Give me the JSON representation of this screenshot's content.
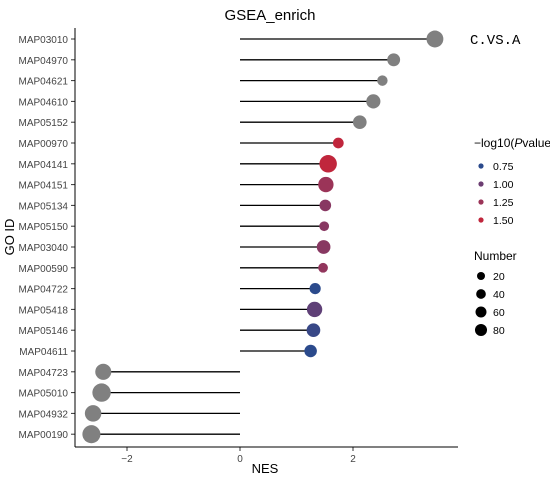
{
  "chart_data": {
    "type": "lollipop",
    "title": "GSEA_enrich",
    "xlabel": "NES",
    "ylabel": "GO ID",
    "annotation": "C.VS.A",
    "xlim": [
      -2.9,
      3.8
    ],
    "x_ticks": [
      -2,
      0,
      2
    ],
    "grid": false,
    "na_color": "#808080",
    "points": [
      {
        "id": "MAP03010",
        "nes": 3.45,
        "number": 80,
        "logp": null
      },
      {
        "id": "MAP04970",
        "nes": 2.72,
        "number": 38,
        "logp": null
      },
      {
        "id": "MAP04621",
        "nes": 2.52,
        "number": 20,
        "logp": null
      },
      {
        "id": "MAP04610",
        "nes": 2.36,
        "number": 50,
        "logp": null
      },
      {
        "id": "MAP05152",
        "nes": 2.12,
        "number": 45,
        "logp": null
      },
      {
        "id": "MAP00970",
        "nes": 1.74,
        "number": 22,
        "logp": 1.55
      },
      {
        "id": "MAP04141",
        "nes": 1.56,
        "number": 88,
        "logp": 1.55
      },
      {
        "id": "MAP04151",
        "nes": 1.52,
        "number": 62,
        "logp": 1.25
      },
      {
        "id": "MAP05134",
        "nes": 1.51,
        "number": 28,
        "logp": 1.15
      },
      {
        "id": "MAP05150",
        "nes": 1.49,
        "number": 16,
        "logp": 1.15
      },
      {
        "id": "MAP03040",
        "nes": 1.48,
        "number": 45,
        "logp": 1.15
      },
      {
        "id": "MAP00590",
        "nes": 1.47,
        "number": 16,
        "logp": 1.2
      },
      {
        "id": "MAP04722",
        "nes": 1.33,
        "number": 25,
        "logp": 0.75
      },
      {
        "id": "MAP05418",
        "nes": 1.32,
        "number": 62,
        "logp": 0.95
      },
      {
        "id": "MAP05146",
        "nes": 1.3,
        "number": 45,
        "logp": 0.8
      },
      {
        "id": "MAP04611",
        "nes": 1.25,
        "number": 35,
        "logp": 0.7
      },
      {
        "id": "MAP04723",
        "nes": -2.42,
        "number": 70,
        "logp": null
      },
      {
        "id": "MAP05010",
        "nes": -2.45,
        "number": 100,
        "logp": null
      },
      {
        "id": "MAP04932",
        "nes": -2.6,
        "number": 75,
        "logp": null
      },
      {
        "id": "MAP00190",
        "nes": -2.63,
        "number": 95,
        "logp": null
      }
    ],
    "legend_color": {
      "title_prefix": "−log10(",
      "title_italic": "P",
      "title_suffix": "value)",
      "breaks": [
        {
          "label": "0.75",
          "value": 0.75,
          "color": "#2b4a8c"
        },
        {
          "label": "1.00",
          "value": 1.0,
          "color": "#6c3e72"
        },
        {
          "label": "1.25",
          "value": 1.25,
          "color": "#9b3458"
        },
        {
          "label": "1.50",
          "value": 1.5,
          "color": "#c0263c"
        }
      ]
    },
    "legend_size": {
      "title": "Number",
      "breaks": [
        {
          "label": "20",
          "value": 20
        },
        {
          "label": "40",
          "value": 40
        },
        {
          "label": "60",
          "value": 60
        },
        {
          "label": "80",
          "value": 80
        }
      ]
    }
  }
}
